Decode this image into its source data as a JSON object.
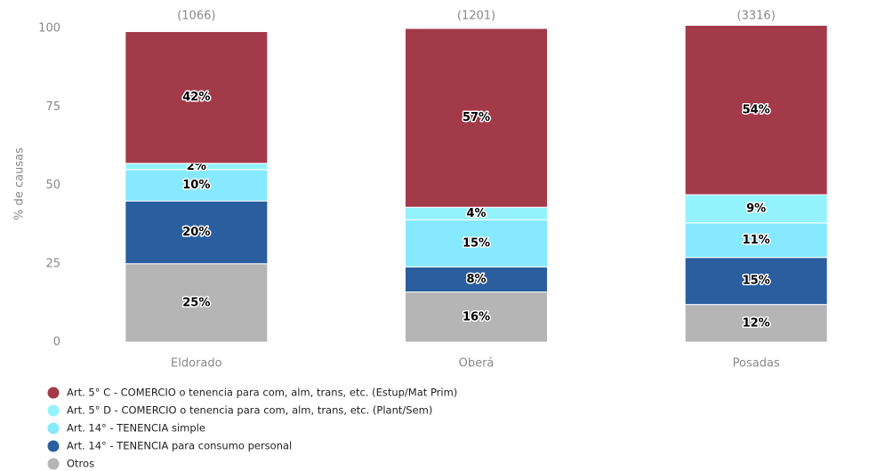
{
  "chart_data": {
    "type": "stacked_bar",
    "y_label": "% de causas",
    "categories": [
      "Eldorado",
      "Oberá",
      "Posadas"
    ],
    "annotations": [
      "(1066)",
      "(1201)",
      "(3316)"
    ],
    "series": [
      {
        "name": "Art. 5° C - COMERCIO o tenencia para com, alm, trans, etc. (Estup/Mat Prim)",
        "color": "#a33a4a",
        "values": [
          42,
          57,
          54
        ],
        "value_labels": [
          "42%",
          "57%",
          "54%"
        ]
      },
      {
        "name": "Art. 5° D - COMERCIO o tenencia para com, alm, trans, etc. (Plant/Sem)",
        "color": "#94f2fc",
        "values": [
          2,
          4,
          9
        ],
        "value_labels": [
          "2%",
          "4%",
          "9%"
        ]
      },
      {
        "name": "Art. 14° - TENENCIA simple",
        "color": "#86e9ff",
        "values": [
          10,
          15,
          11
        ],
        "value_labels": [
          "10%",
          "15%",
          "11%"
        ]
      },
      {
        "name": "Art. 14° - TENENCIA para consumo personal",
        "color": "#2b5e9e",
        "values": [
          20,
          8,
          15
        ],
        "value_labels": [
          "20%",
          "8%",
          "15%"
        ]
      },
      {
        "name": "Otros",
        "color": "#b5b5b5",
        "values": [
          25,
          16,
          12
        ],
        "value_labels": [
          "25%",
          "16%",
          "12%"
        ]
      }
    ],
    "ylim": [
      0,
      100
    ],
    "yticks": [
      0,
      25,
      50,
      75,
      100
    ],
    "grid": false,
    "legend": "bottom-left"
  }
}
